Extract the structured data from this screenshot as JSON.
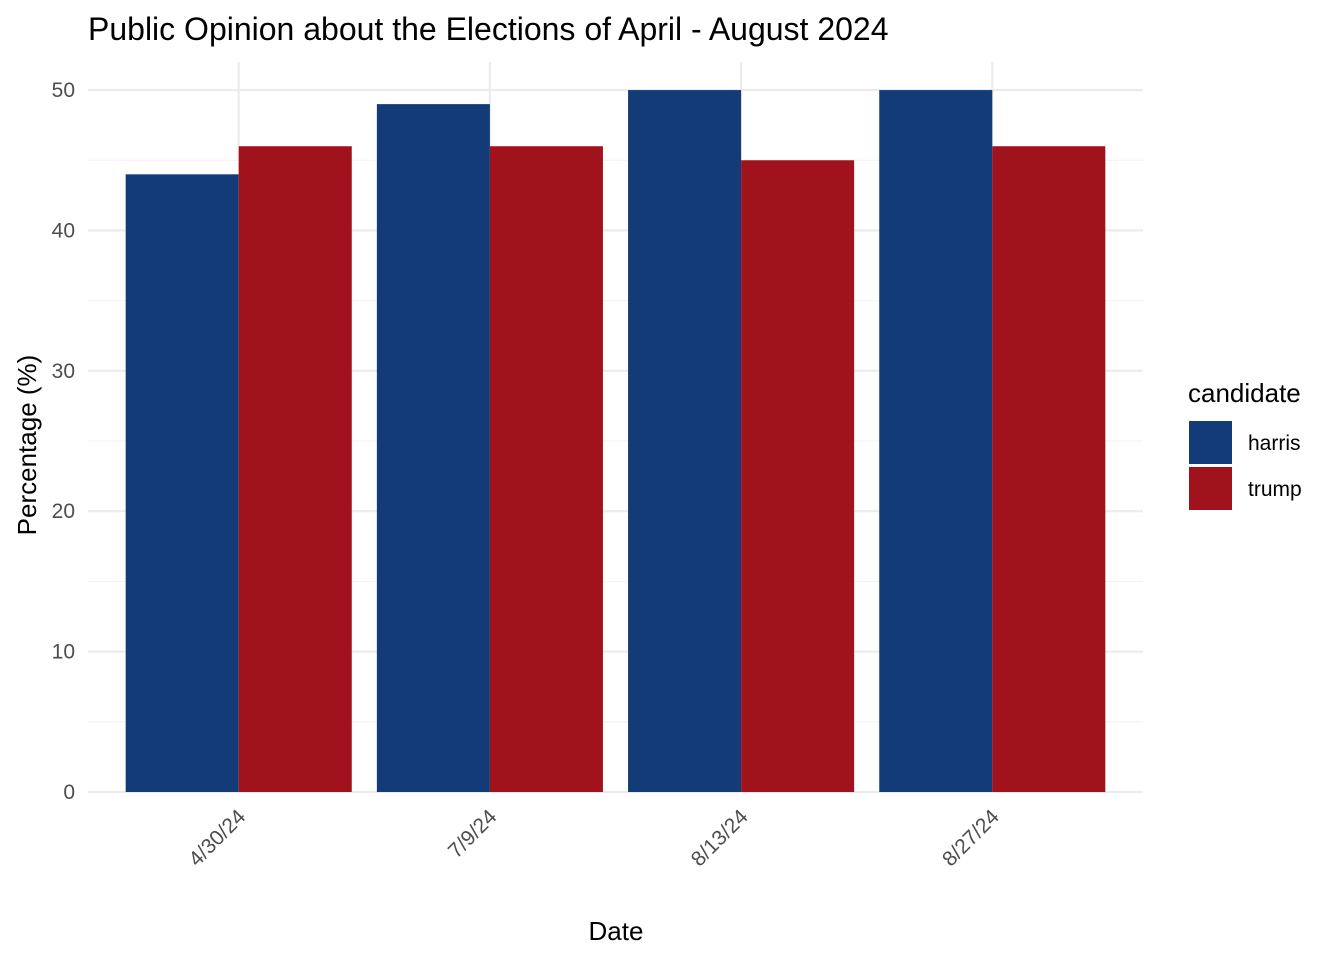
{
  "chart_data": {
    "type": "bar",
    "title": "Public Opinion about the Elections of April - August 2024",
    "xlabel": "Date",
    "ylabel": "Percentage (%)",
    "categories": [
      "4/30/24",
      "7/9/24",
      "8/13/24",
      "8/27/24"
    ],
    "series": [
      {
        "name": "harris",
        "values": [
          44,
          49,
          50,
          50
        ],
        "color": "#133b77"
      },
      {
        "name": "trump",
        "values": [
          46,
          46,
          45,
          46
        ],
        "color": "#a0121c"
      }
    ],
    "ylim": [
      0,
      52
    ],
    "yticks": [
      0,
      10,
      20,
      30,
      40,
      50
    ],
    "grid": true,
    "legend": {
      "title": "candidate",
      "position": "right"
    }
  }
}
